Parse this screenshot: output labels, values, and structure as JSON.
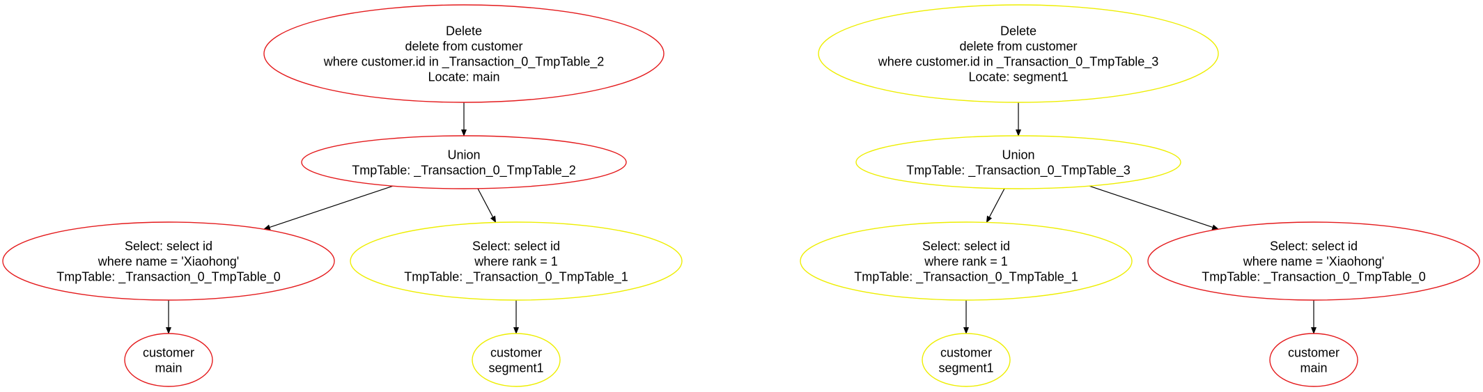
{
  "colors": {
    "main": "#e41a1c",
    "segment1": "#eeee00",
    "edge": "#000000"
  },
  "graphs": [
    {
      "nodes": [
        {
          "id": "L-delete",
          "lines": [
            "Delete",
            "delete from customer",
            "where customer.id in _Transaction_0_TmpTable_2",
            "Locate: main"
          ],
          "color": "main"
        },
        {
          "id": "L-union",
          "lines": [
            "Union",
            "TmpTable: _Transaction_0_TmpTable_2"
          ],
          "color": "main"
        },
        {
          "id": "L-select-name",
          "lines": [
            "Select: select id",
            "where name = 'Xiaohong'",
            "TmpTable: _Transaction_0_TmpTable_0"
          ],
          "color": "main"
        },
        {
          "id": "L-select-rank",
          "lines": [
            "Select: select id",
            "where rank = 1",
            "TmpTable: _Transaction_0_TmpTable_1"
          ],
          "color": "segment1"
        },
        {
          "id": "L-customer-main",
          "lines": [
            "customer",
            "main"
          ],
          "color": "main"
        },
        {
          "id": "L-customer-segment1",
          "lines": [
            "customer",
            "segment1"
          ],
          "color": "segment1"
        }
      ],
      "edges": [
        {
          "from": "L-delete",
          "to": "L-union"
        },
        {
          "from": "L-union",
          "to": "L-select-name"
        },
        {
          "from": "L-union",
          "to": "L-select-rank"
        },
        {
          "from": "L-select-name",
          "to": "L-customer-main"
        },
        {
          "from": "L-select-rank",
          "to": "L-customer-segment1"
        }
      ]
    },
    {
      "nodes": [
        {
          "id": "R-delete",
          "lines": [
            "Delete",
            "delete from customer",
            "where customer.id in _Transaction_0_TmpTable_3",
            "Locate: segment1"
          ],
          "color": "segment1"
        },
        {
          "id": "R-union",
          "lines": [
            "Union",
            "TmpTable: _Transaction_0_TmpTable_3"
          ],
          "color": "segment1"
        },
        {
          "id": "R-select-rank",
          "lines": [
            "Select: select id",
            "where rank = 1",
            "TmpTable: _Transaction_0_TmpTable_1"
          ],
          "color": "segment1"
        },
        {
          "id": "R-select-name",
          "lines": [
            "Select: select id",
            "where name = 'Xiaohong'",
            "TmpTable: _Transaction_0_TmpTable_0"
          ],
          "color": "main"
        },
        {
          "id": "R-customer-segment1",
          "lines": [
            "customer",
            "segment1"
          ],
          "color": "segment1"
        },
        {
          "id": "R-customer-main",
          "lines": [
            "customer",
            "main"
          ],
          "color": "main"
        }
      ],
      "edges": [
        {
          "from": "R-delete",
          "to": "R-union"
        },
        {
          "from": "R-union",
          "to": "R-select-rank"
        },
        {
          "from": "R-union",
          "to": "R-select-name"
        },
        {
          "from": "R-select-rank",
          "to": "R-customer-segment1"
        },
        {
          "from": "R-select-name",
          "to": "R-customer-main"
        }
      ]
    }
  ]
}
